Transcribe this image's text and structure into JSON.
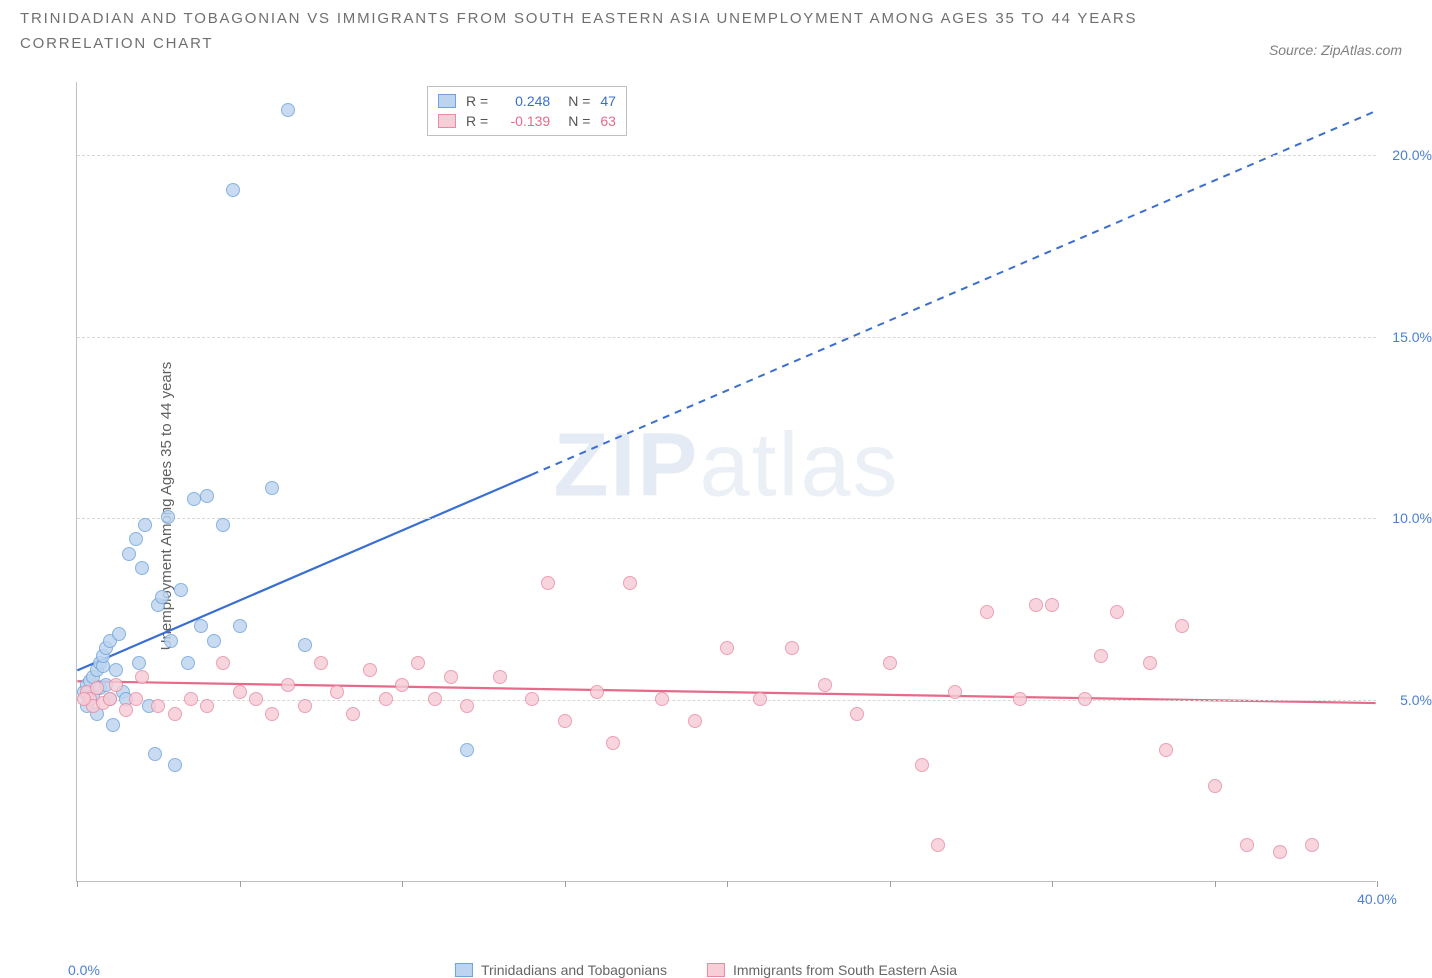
{
  "title_line1": "TRINIDADIAN AND TOBAGONIAN VS IMMIGRANTS FROM SOUTH EASTERN ASIA UNEMPLOYMENT AMONG AGES 35 TO 44 YEARS",
  "title_line2": "CORRELATION CHART",
  "source_label": "Source: ZipAtlas.com",
  "ylabel": "Unemployment Among Ages 35 to 44 years",
  "watermark_a": "ZIP",
  "watermark_b": "atlas",
  "chart": {
    "type": "scatter",
    "xlim": [
      0,
      40
    ],
    "ylim": [
      0,
      22
    ],
    "xticks": [
      0,
      5,
      10,
      15,
      20,
      25,
      30,
      35,
      40
    ],
    "x_end_label": "40.0%",
    "y_gridlines": [
      5,
      10,
      15,
      20
    ],
    "y_grid_labels": [
      "5.0%",
      "10.0%",
      "15.0%",
      "20.0%"
    ],
    "background_color": "#ffffff",
    "grid_color": "#d8d8d8",
    "axis_color": "#c0c0c0",
    "x_origin_label": "0.0%",
    "x_origin_color": "#4a7fd6",
    "y_tick_color": "#4a7fd6",
    "series": [
      {
        "name": "Trinidadians and Tobagonians",
        "fill": "#bcd4ef",
        "stroke": "#6fa3dd",
        "line_color": "#3a6fd0",
        "r_value": "0.248",
        "n_value": "47",
        "trend": {
          "x1": 0,
          "y1": 5.8,
          "x2": 40,
          "y2": 21.2,
          "solid_until_x": 14
        },
        "points": [
          [
            0.2,
            5.2
          ],
          [
            0.3,
            5.4
          ],
          [
            0.4,
            5.5
          ],
          [
            0.4,
            5.0
          ],
          [
            0.5,
            5.6
          ],
          [
            0.5,
            5.1
          ],
          [
            0.6,
            4.6
          ],
          [
            0.6,
            5.8
          ],
          [
            0.7,
            5.3
          ],
          [
            0.7,
            6.0
          ],
          [
            0.8,
            5.9
          ],
          [
            0.8,
            6.2
          ],
          [
            0.9,
            5.4
          ],
          [
            0.9,
            6.4
          ],
          [
            1.0,
            5.0
          ],
          [
            1.0,
            6.6
          ],
          [
            1.1,
            4.3
          ],
          [
            1.2,
            5.8
          ],
          [
            1.3,
            6.8
          ],
          [
            1.4,
            5.2
          ],
          [
            1.6,
            9.0
          ],
          [
            1.8,
            9.4
          ],
          [
            1.9,
            6.0
          ],
          [
            2.0,
            8.6
          ],
          [
            2.1,
            9.8
          ],
          [
            2.2,
            4.8
          ],
          [
            2.4,
            3.5
          ],
          [
            2.5,
            7.6
          ],
          [
            2.6,
            7.8
          ],
          [
            2.8,
            10.0
          ],
          [
            2.9,
            6.6
          ],
          [
            3.0,
            3.2
          ],
          [
            3.2,
            8.0
          ],
          [
            3.4,
            6.0
          ],
          [
            3.6,
            10.5
          ],
          [
            3.8,
            7.0
          ],
          [
            4.0,
            10.6
          ],
          [
            4.2,
            6.6
          ],
          [
            4.5,
            9.8
          ],
          [
            4.8,
            19.0
          ],
          [
            5.0,
            7.0
          ],
          [
            6.0,
            10.8
          ],
          [
            6.5,
            21.2
          ],
          [
            7.0,
            6.5
          ],
          [
            12.0,
            3.6
          ],
          [
            1.5,
            5.0
          ],
          [
            0.3,
            4.8
          ]
        ]
      },
      {
        "name": "Immigrants from South Eastern Asia",
        "fill": "#f7cdd7",
        "stroke": "#e98ca2",
        "line_color": "#e66a8a",
        "r_value": "-0.139",
        "n_value": "63",
        "trend": {
          "x1": 0,
          "y1": 5.5,
          "x2": 40,
          "y2": 4.9,
          "solid_until_x": 40
        },
        "points": [
          [
            0.3,
            5.2
          ],
          [
            0.4,
            5.0
          ],
          [
            0.5,
            4.8
          ],
          [
            0.6,
            5.3
          ],
          [
            0.8,
            4.9
          ],
          [
            1.0,
            5.0
          ],
          [
            1.2,
            5.4
          ],
          [
            1.5,
            4.7
          ],
          [
            1.8,
            5.0
          ],
          [
            2.0,
            5.6
          ],
          [
            2.5,
            4.8
          ],
          [
            3.0,
            4.6
          ],
          [
            3.5,
            5.0
          ],
          [
            4.0,
            4.8
          ],
          [
            4.5,
            6.0
          ],
          [
            5.0,
            5.2
          ],
          [
            5.5,
            5.0
          ],
          [
            6.0,
            4.6
          ],
          [
            6.5,
            5.4
          ],
          [
            7.0,
            4.8
          ],
          [
            7.5,
            6.0
          ],
          [
            8.0,
            5.2
          ],
          [
            8.5,
            4.6
          ],
          [
            9.0,
            5.8
          ],
          [
            9.5,
            5.0
          ],
          [
            10.0,
            5.4
          ],
          [
            10.5,
            6.0
          ],
          [
            11.0,
            5.0
          ],
          [
            11.5,
            5.6
          ],
          [
            12.0,
            4.8
          ],
          [
            13.0,
            5.6
          ],
          [
            14.0,
            5.0
          ],
          [
            14.5,
            8.2
          ],
          [
            15.0,
            4.4
          ],
          [
            16.0,
            5.2
          ],
          [
            16.5,
            3.8
          ],
          [
            17.0,
            8.2
          ],
          [
            18.0,
            5.0
          ],
          [
            19.0,
            4.4
          ],
          [
            20.0,
            6.4
          ],
          [
            21.0,
            5.0
          ],
          [
            22.0,
            6.4
          ],
          [
            23.0,
            5.4
          ],
          [
            24.0,
            4.6
          ],
          [
            25.0,
            6.0
          ],
          [
            26.0,
            3.2
          ],
          [
            26.5,
            1.0
          ],
          [
            27.0,
            5.2
          ],
          [
            28.0,
            7.4
          ],
          [
            29.0,
            5.0
          ],
          [
            29.5,
            7.6
          ],
          [
            30.0,
            7.6
          ],
          [
            31.0,
            5.0
          ],
          [
            31.5,
            6.2
          ],
          [
            32.0,
            7.4
          ],
          [
            33.0,
            6.0
          ],
          [
            33.5,
            3.6
          ],
          [
            34.0,
            7.0
          ],
          [
            35.0,
            2.6
          ],
          [
            36.0,
            1.0
          ],
          [
            37.0,
            0.8
          ],
          [
            38.0,
            1.0
          ],
          [
            0.2,
            5.0
          ]
        ]
      }
    ]
  },
  "legend": {
    "r_label": "R =",
    "n_label": "N ="
  }
}
